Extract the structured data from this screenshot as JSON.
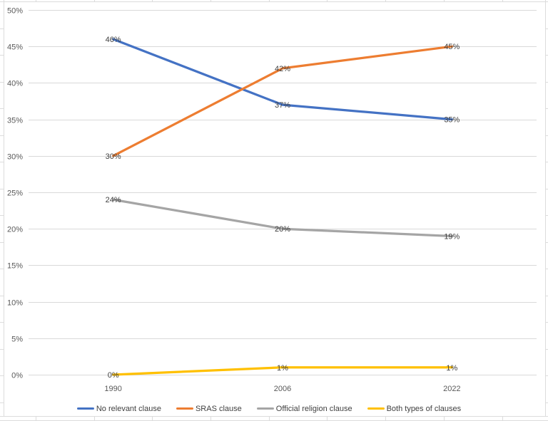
{
  "chart_data": {
    "type": "line",
    "title": "",
    "xlabel": "",
    "ylabel": "",
    "categories": [
      "1990",
      "2006",
      "2022"
    ],
    "series": [
      {
        "name": "No relevant clause",
        "color": "#4472C4",
        "values": [
          46,
          37,
          35
        ],
        "point_labels": [
          "46%",
          "37%",
          "35%"
        ]
      },
      {
        "name": "SRAS clause",
        "color": "#ED7D31",
        "values": [
          30,
          42,
          45
        ],
        "point_labels": [
          "30%",
          "42%",
          "45%"
        ]
      },
      {
        "name": "Official religion clause",
        "color": "#A5A5A5",
        "values": [
          24,
          20,
          19
        ],
        "point_labels": [
          "24%",
          "20%",
          "19%"
        ]
      },
      {
        "name": "Both types of clauses",
        "color": "#FFC000",
        "values": [
          0,
          1,
          1
        ],
        "point_labels": [
          "0%",
          "1%",
          "1%"
        ]
      }
    ],
    "ylim": [
      0,
      50
    ],
    "ytick_labels": [
      "0%",
      "5%",
      "10%",
      "15%",
      "20%",
      "25%",
      "30%",
      "35%",
      "40%",
      "45%",
      "50%"
    ],
    "grid": true,
    "legend_position": "bottom",
    "theme": {
      "background": "#FFFFFF",
      "gridline_color": "#D9D9D9",
      "axis_text_color": "#595959",
      "data_label_color": "#404040",
      "sheet_grid_color": "#DCDCDC"
    }
  }
}
